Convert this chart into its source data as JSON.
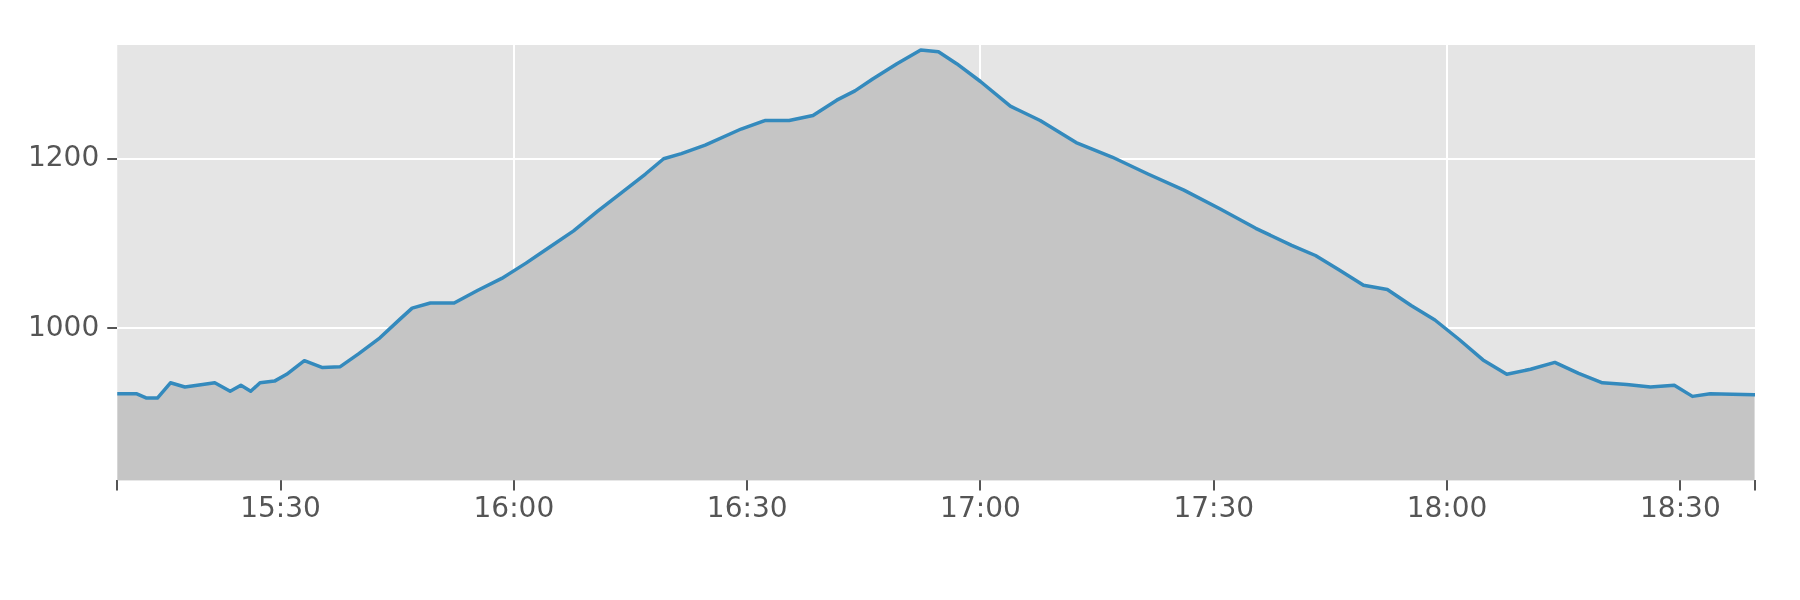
{
  "chart_data": {
    "type": "area",
    "x": [
      15.15,
      15.192,
      15.213,
      15.236,
      15.264,
      15.295,
      15.333,
      15.359,
      15.392,
      15.415,
      15.436,
      15.456,
      15.487,
      15.513,
      15.551,
      15.59,
      15.628,
      15.667,
      15.713,
      15.756,
      15.782,
      15.821,
      15.872,
      15.923,
      15.974,
      16.026,
      16.077,
      16.128,
      16.179,
      16.231,
      16.282,
      16.321,
      16.359,
      16.41,
      16.487,
      16.538,
      16.59,
      16.641,
      16.692,
      16.731,
      16.769,
      16.821,
      16.872,
      16.91,
      16.949,
      17.0,
      17.064,
      17.128,
      17.205,
      17.282,
      17.359,
      17.436,
      17.513,
      17.59,
      17.667,
      17.718,
      17.769,
      17.821,
      17.872,
      17.923,
      17.974,
      18.026,
      18.077,
      18.128,
      18.179,
      18.231,
      18.282,
      18.333,
      18.385,
      18.436,
      18.487,
      18.526,
      18.564,
      18.659
    ],
    "series": [
      {
        "color": "#348abd",
        "values": [
          923,
          923,
          918,
          918,
          936,
          931,
          934,
          936,
          926,
          933,
          926,
          936,
          938,
          946,
          962,
          954,
          955,
          970,
          989,
          1011,
          1024,
          1030,
          1030,
          1045,
          1059,
          1077,
          1096,
          1115,
          1138,
          1160,
          1182,
          1200,
          1206,
          1216,
          1235,
          1245,
          1245,
          1251,
          1269,
          1280,
          1294,
          1312,
          1328,
          1326,
          1312,
          1291,
          1262,
          1245,
          1219,
          1202,
          1182,
          1163,
          1141,
          1118,
          1098,
          1086,
          1069,
          1051,
          1046,
          1027,
          1010,
          987,
          963,
          946,
          952,
          960,
          947,
          936,
          934,
          931,
          933,
          920,
          923,
          922
        ]
      }
    ],
    "xlim": [
      15.15,
      18.66
    ],
    "xticks": [
      {
        "value": 15.15,
        "label": null
      },
      {
        "value": 15.5,
        "label": "15:30"
      },
      {
        "value": 16,
        "label": "16:00"
      },
      {
        "value": 16.5,
        "label": "16:30"
      },
      {
        "value": 17,
        "label": "17:00"
      },
      {
        "value": 17.5,
        "label": "17:30"
      },
      {
        "value": 18,
        "label": "18:00"
      },
      {
        "value": 18.5,
        "label": "18:30"
      },
      {
        "value": 18.66,
        "label": null
      }
    ],
    "ylim": [
      821,
      1334
    ],
    "yticks": [
      1000,
      1200
    ],
    "grid": true
  }
}
